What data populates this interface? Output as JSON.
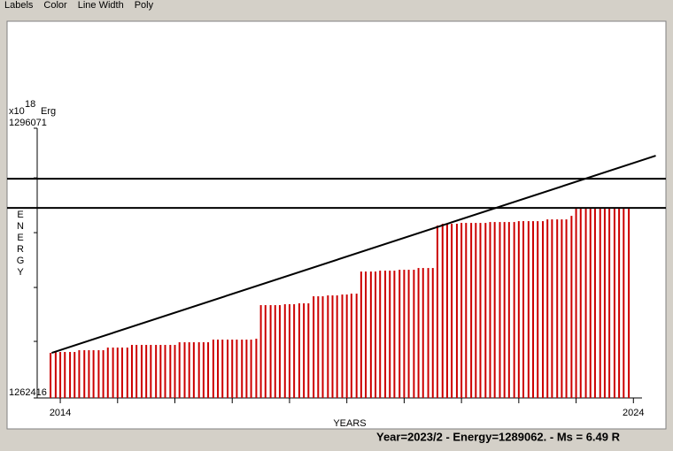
{
  "menu": [
    "Labels",
    "Color",
    "Line Width",
    "Poly"
  ],
  "chart_data": {
    "type": "bar",
    "y_unit_prefix": "x10",
    "y_unit_exponent": "18",
    "y_unit": "Erg",
    "ylabel": "ENERGY",
    "xlabel": "YEARS",
    "x": [
      2013.83,
      2013.92,
      2014,
      2014.08,
      2014.17,
      2014.25,
      2014.33,
      2014.42,
      2014.5,
      2014.58,
      2014.67,
      2014.75,
      2014.83,
      2014.92,
      2015,
      2015.08,
      2015.17,
      2015.25,
      2015.33,
      2015.42,
      2015.5,
      2015.58,
      2015.67,
      2015.75,
      2015.83,
      2015.92,
      2016,
      2016.08,
      2016.17,
      2016.25,
      2016.33,
      2016.42,
      2016.5,
      2016.58,
      2016.67,
      2016.75,
      2016.83,
      2016.92,
      2017,
      2017.08,
      2017.17,
      2017.25,
      2017.33,
      2017.42,
      2017.5,
      2017.58,
      2017.67,
      2017.75,
      2017.83,
      2017.92,
      2018,
      2018.08,
      2018.17,
      2018.25,
      2018.33,
      2018.42,
      2018.5,
      2018.58,
      2018.67,
      2018.75,
      2018.83,
      2018.92,
      2019,
      2019.08,
      2019.17,
      2019.25,
      2019.33,
      2019.42,
      2019.5,
      2019.58,
      2019.67,
      2019.75,
      2019.83,
      2019.92,
      2020,
      2020.08,
      2020.17,
      2020.25,
      2020.33,
      2020.42,
      2020.5,
      2020.58,
      2020.67,
      2020.75,
      2020.83,
      2020.92,
      2021,
      2021.08,
      2021.17,
      2021.25,
      2021.33,
      2021.42,
      2021.5,
      2021.58,
      2021.67,
      2021.75,
      2021.83,
      2021.92,
      2022,
      2022.08,
      2022.17,
      2022.25,
      2022.33,
      2022.42,
      2022.5,
      2022.58,
      2022.67,
      2022.75,
      2022.83,
      2022.92,
      2023,
      2023.08,
      2023.17,
      2023.25,
      2023.33,
      2023.42,
      2023.5,
      2023.58,
      2023.67,
      2023.75,
      2023.83,
      2023.92
    ],
    "series": [
      {
        "color": "#cc0000",
        "values": [
          1268041,
          1268152,
          1268152,
          1268152,
          1268152,
          1268152,
          1268372,
          1268372,
          1268372,
          1268372,
          1268372,
          1268372,
          1268703,
          1268703,
          1268703,
          1268703,
          1268703,
          1269034,
          1269034,
          1269034,
          1269034,
          1269034,
          1269034,
          1269034,
          1269034,
          1269034,
          1269034,
          1269365,
          1269365,
          1269365,
          1269365,
          1269365,
          1269365,
          1269365,
          1269696,
          1269696,
          1269696,
          1269696,
          1269696,
          1269696,
          1269696,
          1269696,
          1269696,
          1269806,
          1273998,
          1273998,
          1273998,
          1273998,
          1273998,
          1274109,
          1274109,
          1274109,
          1274221,
          1274221,
          1274221,
          1275101,
          1275101,
          1275101,
          1275211,
          1275211,
          1275211,
          1275321,
          1275321,
          1275431,
          1275431,
          1278189,
          1278189,
          1278189,
          1278189,
          1278299,
          1278299,
          1278299,
          1278299,
          1278410,
          1278410,
          1278410,
          1278410,
          1278630,
          1278630,
          1278630,
          1278630,
          1283925,
          1284146,
          1284146,
          1284146,
          1284146,
          1284256,
          1284256,
          1284256,
          1284256,
          1284256,
          1284256,
          1284366,
          1284366,
          1284366,
          1284366,
          1284366,
          1284366,
          1284476,
          1284476,
          1284476,
          1284476,
          1284476,
          1284476,
          1284697,
          1284697,
          1284697,
          1284697,
          1284697,
          1285138,
          1286020,
          1286020,
          1286020,
          1286020,
          1286020,
          1286020,
          1286020,
          1286020,
          1286020,
          1286020,
          1286020,
          1286020
        ]
      }
    ],
    "trend_line": {
      "x": [
        2013.85,
        2024.39
      ],
      "y": [
        1268041,
        1292638
      ],
      "color": "#000000"
    },
    "hlines": [
      1289770,
      1286131
    ],
    "xlim": [
      2013.69,
      2024.15
    ],
    "ylim": [
      1262416,
      1296071
    ],
    "xticks": [
      2014,
      2024
    ],
    "xminorticks": [
      2015,
      2016,
      2017,
      2018,
      2019,
      2020,
      2021,
      2022,
      2023
    ],
    "yticks": [
      1262416,
      1296071
    ],
    "yminorticks": [
      1269475,
      1276203,
      1283042,
      1289880
    ]
  },
  "status": "Year=2023/2 - Energy=1289062. - Ms = 6.49 R"
}
